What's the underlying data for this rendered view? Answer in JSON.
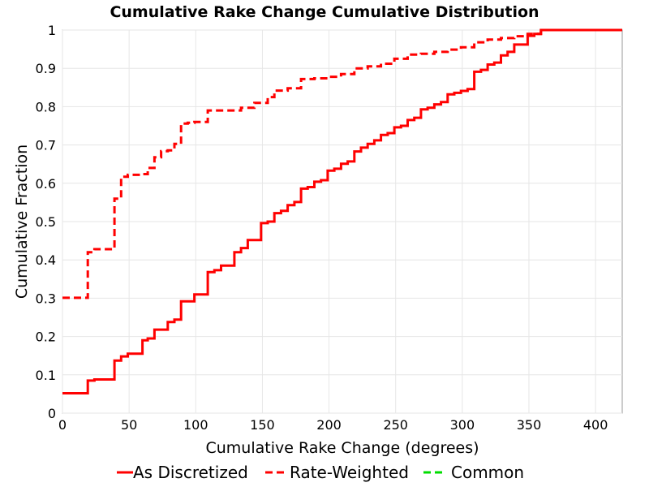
{
  "chart_data": {
    "type": "line",
    "title": "Cumulative Rake Change Cumulative Distribution",
    "xlabel": "Cumulative Rake Change (degrees)",
    "ylabel": "Cumulative Fraction",
    "xlim": [
      0,
      420
    ],
    "ylim": [
      0,
      1
    ],
    "x_ticks": [
      0,
      50,
      100,
      150,
      200,
      250,
      300,
      350,
      400
    ],
    "y_ticks": [
      0,
      0.1,
      0.2,
      0.3,
      0.4,
      0.5,
      0.6,
      0.7,
      0.8,
      0.9,
      1
    ],
    "y_tick_labels": [
      "0",
      "0.1",
      "0.2",
      "0.3",
      "0.4",
      "0.5",
      "0.6",
      "0.7",
      "0.8",
      "0.9",
      "1"
    ],
    "grid": true,
    "legend_position": "bottom",
    "series": [
      {
        "name": "As Discretized",
        "color": "#ff0000",
        "dash": "solid",
        "step": true,
        "x": [
          0,
          19,
          24,
          39,
          44,
          49,
          60,
          64,
          69,
          79,
          84,
          89,
          99,
          109,
          114,
          119,
          129,
          134,
          139,
          149,
          154,
          159,
          164,
          169,
          174,
          179,
          184,
          189,
          194,
          199,
          204,
          209,
          214,
          219,
          224,
          229,
          234,
          239,
          244,
          249,
          254,
          259,
          264,
          269,
          274,
          279,
          284,
          289,
          294,
          299,
          304,
          309,
          314,
          319,
          324,
          329,
          334,
          339,
          349,
          354,
          359,
          420
        ],
        "y": [
          0.052,
          0.085,
          0.088,
          0.137,
          0.148,
          0.155,
          0.19,
          0.195,
          0.218,
          0.238,
          0.244,
          0.292,
          0.31,
          0.368,
          0.373,
          0.385,
          0.42,
          0.431,
          0.452,
          0.496,
          0.5,
          0.522,
          0.528,
          0.543,
          0.551,
          0.586,
          0.59,
          0.604,
          0.608,
          0.633,
          0.638,
          0.651,
          0.657,
          0.683,
          0.693,
          0.703,
          0.712,
          0.726,
          0.731,
          0.746,
          0.75,
          0.765,
          0.771,
          0.793,
          0.797,
          0.806,
          0.812,
          0.832,
          0.836,
          0.841,
          0.846,
          0.891,
          0.896,
          0.91,
          0.915,
          0.934,
          0.943,
          0.962,
          0.985,
          0.99,
          1.0,
          1.0
        ]
      },
      {
        "name": "Rate-Weighted",
        "color": "#ff0000",
        "dash": "dashed",
        "step": true,
        "x": [
          0,
          19,
          24,
          39,
          44,
          49,
          59,
          64,
          69,
          74,
          79,
          84,
          89,
          94,
          99,
          109,
          119,
          129,
          134,
          144,
          154,
          159,
          169,
          179,
          189,
          199,
          209,
          219,
          229,
          239,
          249,
          259,
          269,
          279,
          289,
          299,
          309,
          319,
          329,
          339,
          349,
          359,
          420
        ],
        "y": [
          0.301,
          0.42,
          0.428,
          0.56,
          0.617,
          0.622,
          0.624,
          0.64,
          0.668,
          0.684,
          0.686,
          0.703,
          0.756,
          0.758,
          0.76,
          0.79,
          0.79,
          0.79,
          0.797,
          0.81,
          0.825,
          0.842,
          0.848,
          0.872,
          0.874,
          0.878,
          0.885,
          0.9,
          0.905,
          0.912,
          0.925,
          0.936,
          0.938,
          0.943,
          0.949,
          0.955,
          0.968,
          0.975,
          0.979,
          0.984,
          0.99,
          1.0,
          1.0
        ]
      }
    ],
    "legend": [
      {
        "label": "As Discretized",
        "color": "#ff0000",
        "dash": "solid"
      },
      {
        "label": "Rate-Weighted",
        "color": "#ff0000",
        "dash": "dashed"
      },
      {
        "label": "Common",
        "color": "#00dd00",
        "dash": "dashed"
      }
    ]
  }
}
